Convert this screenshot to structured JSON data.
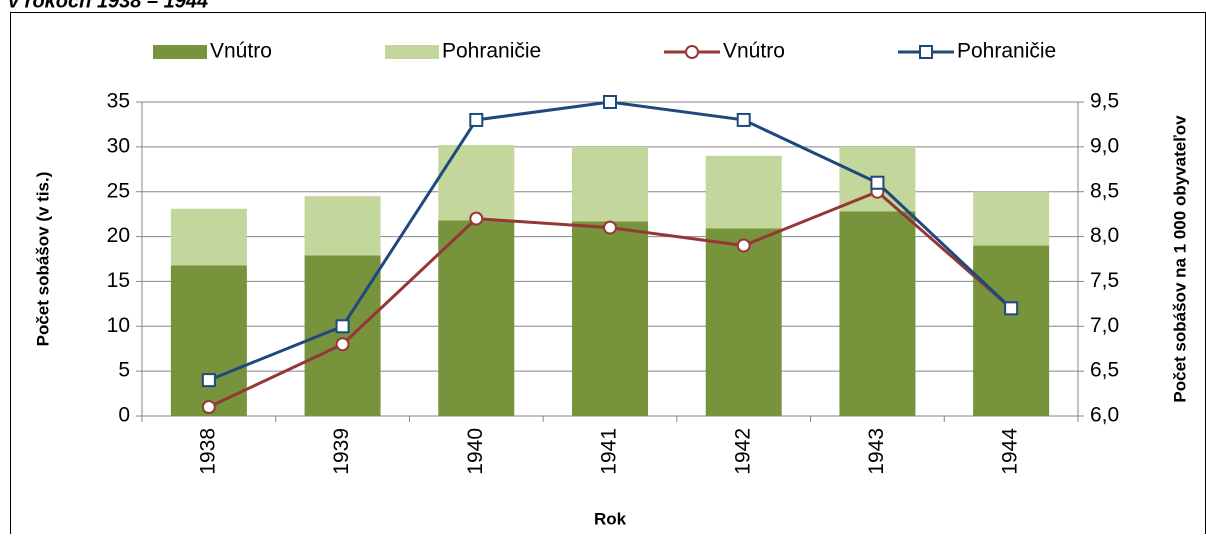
{
  "chart_data": {
    "type": "bar",
    "title": "v rokoch 1938 – 1944",
    "xlabel": "Rok",
    "ylabel": "Počet sobášov (v tis.)",
    "y2label": "Počet sobášov na 1 000 obyvateľov",
    "categories": [
      "1938",
      "1939",
      "1940",
      "1941",
      "1942",
      "1943",
      "1944"
    ],
    "series": [
      {
        "name": "Vnútro",
        "color": "#77933c",
        "values": [
          16.8,
          17.9,
          21.8,
          21.7,
          20.9,
          22.8,
          19.0
        ]
      },
      {
        "name": "Pohraničie",
        "color": "#c3d69b",
        "values": [
          6.3,
          6.6,
          8.4,
          8.3,
          8.1,
          7.2,
          6.0
        ]
      },
      {
        "name": "Vnútro",
        "color": "#953735",
        "type": "line",
        "axis": "y2",
        "marker": "circle",
        "values": [
          6.1,
          6.8,
          8.2,
          8.1,
          7.9,
          8.5,
          7.2
        ]
      },
      {
        "name": "Pohraničie",
        "color": "#1f497d",
        "type": "line",
        "axis": "y2",
        "marker": "square",
        "values": [
          6.4,
          7.0,
          9.3,
          9.5,
          9.3,
          8.6,
          7.2
        ]
      }
    ],
    "stacked": true,
    "ylim": [
      0,
      35
    ],
    "yticks": [
      0,
      5,
      10,
      15,
      20,
      25,
      30,
      35
    ],
    "y2lim": [
      6.0,
      9.5
    ],
    "y2ticks": [
      {
        "value": 6.0,
        "label": "6,0"
      },
      {
        "value": 6.5,
        "label": "6,5"
      },
      {
        "value": 7.0,
        "label": "7,0"
      },
      {
        "value": 7.5,
        "label": "7,5"
      },
      {
        "value": 8.0,
        "label": "8,0"
      },
      {
        "value": 8.5,
        "label": "8,5"
      },
      {
        "value": 9.0,
        "label": "9,0"
      },
      {
        "value": 9.5,
        "label": "9,5"
      }
    ],
    "grid": true,
    "legend": "top"
  }
}
